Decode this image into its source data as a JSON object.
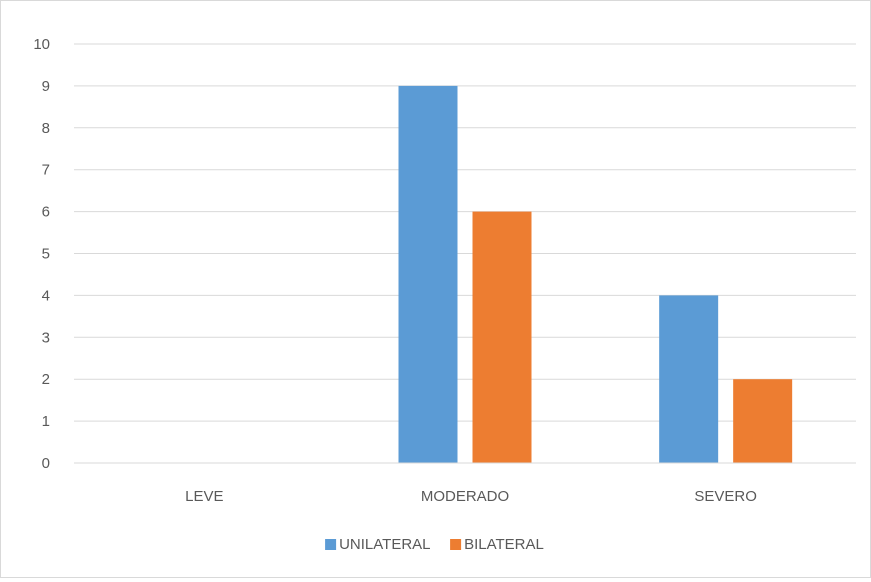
{
  "chart_data": {
    "type": "bar",
    "categories": [
      "LEVE",
      "MODERADO",
      "SEVERO"
    ],
    "series": [
      {
        "name": "UNILATERAL",
        "values": [
          0,
          9,
          4
        ],
        "color": "#5b9bd5"
      },
      {
        "name": "BILATERAL",
        "values": [
          0,
          6,
          2
        ],
        "color": "#ed7d31"
      }
    ],
    "title": "",
    "xlabel": "",
    "ylabel": "",
    "ylim": [
      0,
      10
    ],
    "yticks": [
      0,
      1,
      2,
      3,
      4,
      5,
      6,
      7,
      8,
      9,
      10
    ],
    "grid": true,
    "legend_position": "bottom"
  }
}
